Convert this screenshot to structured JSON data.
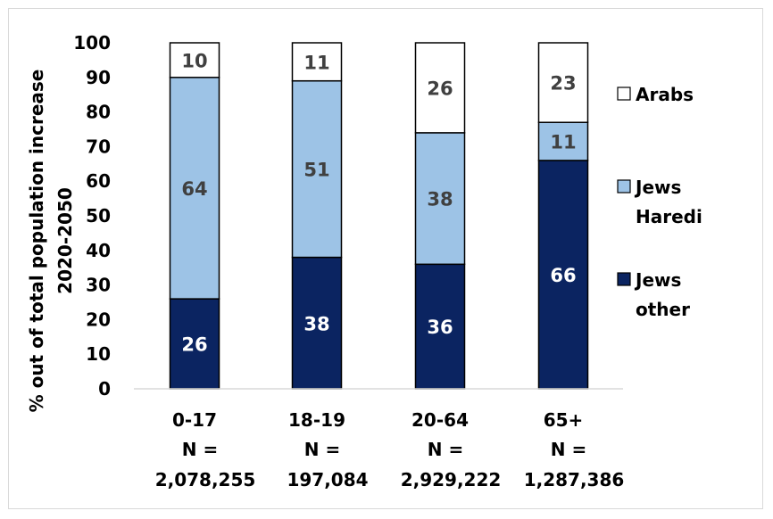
{
  "chart_data": {
    "type": "bar",
    "stacked": true,
    "ylabel_lines": [
      "% out of total population increase",
      "2020-2050"
    ],
    "xlabel": "",
    "ylim": [
      0,
      100
    ],
    "yticks": [
      0,
      10,
      20,
      30,
      40,
      50,
      60,
      70,
      80,
      90,
      100
    ],
    "grid": false,
    "legend_position": "right",
    "categories": [
      {
        "age": "0-17",
        "n_label": "N =",
        "n_value": "2,078,255"
      },
      {
        "age": "18-19",
        "n_label": "N =",
        "n_value": "197,084"
      },
      {
        "age": "20-64",
        "n_label": "N =",
        "n_value": "2,929,222"
      },
      {
        "age": "65+",
        "n_label": "N =",
        "n_value": "1,287,386"
      }
    ],
    "series": [
      {
        "name_lines": [
          "Jews",
          "other"
        ],
        "color": "#0b2461",
        "label_color": "#ffffff",
        "values": [
          26,
          38,
          36,
          66
        ]
      },
      {
        "name_lines": [
          "Jews",
          "Haredi"
        ],
        "color": "#9dc3e6",
        "label_color": "#404040",
        "values": [
          64,
          51,
          38,
          11
        ]
      },
      {
        "name_lines": [
          "Arabs"
        ],
        "color": "#ffffff",
        "label_color": "#404040",
        "values": [
          10,
          11,
          26,
          23
        ]
      }
    ]
  }
}
